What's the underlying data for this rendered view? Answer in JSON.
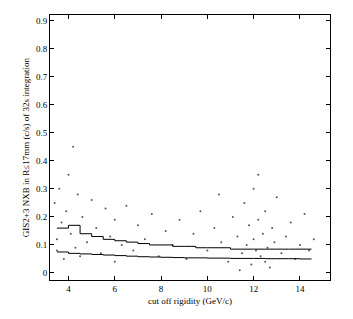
{
  "chart_data": {
    "type": "scatter",
    "x_label": "cut off rigidity (GeV/c)",
    "y_label": "GIS2+3 NXB in R≤17mm (c/s) of 32s integration",
    "xlim": [
      3.2,
      15.3
    ],
    "xticks": [
      4,
      6,
      8,
      10,
      12,
      14
    ],
    "ylim": [
      -0.025,
      0.92
    ],
    "yticks": [
      0,
      0.1,
      0.2,
      0.3,
      0.4,
      0.5,
      0.6,
      0.7,
      0.8,
      0.9
    ],
    "grid": false,
    "series": [
      {
        "type": "scatter",
        "marker": "dot",
        "color": "#555555",
        "x": [
          3.4,
          3.5,
          3.6,
          3.7,
          3.8,
          3.9,
          4.0,
          4.1,
          4.2,
          4.3,
          4.4,
          4.6,
          4.8,
          5.0,
          5.2,
          5.4,
          5.6,
          5.8,
          6.0,
          6.3,
          6.5,
          6.8,
          7.0,
          7.3,
          7.6,
          7.9,
          8.2,
          8.5,
          8.8,
          9.1,
          9.4,
          9.7,
          10.0,
          10.3,
          10.6,
          10.9,
          11.1,
          11.3,
          11.5,
          11.6,
          11.7,
          11.8,
          11.9,
          12.0,
          12.0,
          12.1,
          12.2,
          12.3,
          12.4,
          12.5,
          12.6,
          12.7,
          12.8,
          12.9,
          13.0,
          13.2,
          13.4,
          13.6,
          13.8,
          14.0,
          14.2,
          14.4,
          14.6,
          3.5,
          4.5,
          6.0,
          12.2,
          11.4,
          12.5,
          10.5
        ],
        "values": [
          0.25,
          0.12,
          0.3,
          0.18,
          0.05,
          0.22,
          0.35,
          0.14,
          0.45,
          0.09,
          0.28,
          0.2,
          0.11,
          0.26,
          0.16,
          0.07,
          0.23,
          0.13,
          0.19,
          0.1,
          0.24,
          0.08,
          0.17,
          0.12,
          0.21,
          0.06,
          0.15,
          0.1,
          0.19,
          0.05,
          0.14,
          0.22,
          0.08,
          0.16,
          0.11,
          0.04,
          0.2,
          0.13,
          0.07,
          0.25,
          0.1,
          0.17,
          0.03,
          0.12,
          0.3,
          0.08,
          0.19,
          0.06,
          0.14,
          0.22,
          0.09,
          0.02,
          0.16,
          0.11,
          0.27,
          0.07,
          0.13,
          0.18,
          0.05,
          0.1,
          0.21,
          0.08,
          0.12,
          0.08,
          0.06,
          0.04,
          0.35,
          0.01,
          0.04,
          0.28
        ]
      },
      {
        "type": "line",
        "line_style": "step",
        "color": "#000000",
        "x": [
          3.5,
          4.0,
          4.5,
          5.0,
          5.5,
          6.0,
          6.5,
          7.0,
          7.5,
          8.0,
          8.5,
          9.0,
          9.5,
          10.0,
          10.5,
          11.0,
          11.5,
          12.0,
          12.5,
          13.0,
          13.5,
          14.0,
          14.5
        ],
        "values": [
          0.16,
          0.17,
          0.14,
          0.13,
          0.12,
          0.115,
          0.11,
          0.105,
          0.1,
          0.1,
          0.095,
          0.095,
          0.09,
          0.09,
          0.09,
          0.085,
          0.085,
          0.085,
          0.085,
          0.085,
          0.085,
          0.085,
          0.085
        ]
      },
      {
        "type": "line",
        "line_style": "step",
        "color": "#000000",
        "x": [
          3.5,
          4.0,
          4.5,
          5.0,
          5.5,
          6.0,
          6.5,
          7.0,
          7.5,
          8.0,
          8.5,
          9.0,
          9.5,
          10.0,
          10.5,
          11.0,
          11.5,
          12.0,
          12.5,
          13.0,
          13.5,
          14.0,
          14.5
        ],
        "values": [
          0.075,
          0.07,
          0.068,
          0.066,
          0.064,
          0.062,
          0.06,
          0.058,
          0.057,
          0.056,
          0.055,
          0.054,
          0.054,
          0.053,
          0.053,
          0.052,
          0.052,
          0.052,
          0.051,
          0.051,
          0.051,
          0.05,
          0.05
        ]
      }
    ]
  }
}
